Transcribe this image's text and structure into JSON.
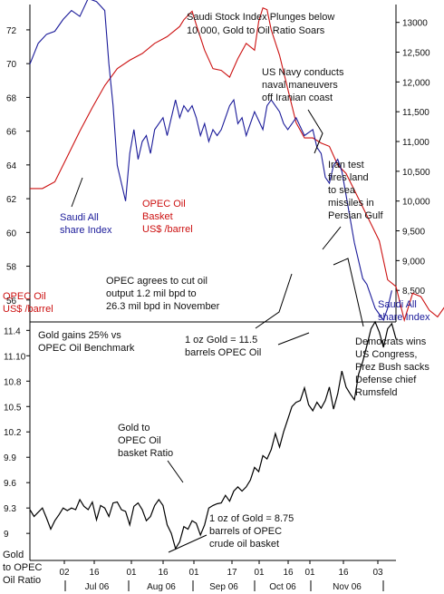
{
  "chart_data": [
    {
      "type": "line",
      "title": "Saudi Stock Index Plunges below 10,000, Gold to Oil Ratio Soars",
      "y_left": {
        "ticks": [
          56,
          58,
          60,
          62,
          64,
          66,
          68,
          70,
          72
        ],
        "lim": [
          54.7,
          73.5
        ]
      },
      "y_right": {
        "ticks": [
          "8,500",
          "9,000",
          "9,500",
          "10,000",
          "10,500",
          "11,000",
          "11,500",
          "12,000",
          "12,500",
          "13000"
        ],
        "values": [
          8500,
          9000,
          9500,
          10000,
          10500,
          11000,
          11500,
          12000,
          12500,
          13000
        ],
        "lim": [
          7970,
          13300
        ]
      },
      "series": [
        {
          "name": "OPEC Oil Basket US$ /barrel",
          "axis": "left",
          "color": "#cc1111",
          "points": [
            [
              0,
              62.6
            ],
            [
              3,
              62.6
            ],
            [
              6,
              63
            ],
            [
              9,
              64.5
            ],
            [
              12,
              66
            ],
            [
              15,
              67.4
            ],
            [
              18,
              68.7
            ],
            [
              21,
              69.7
            ],
            [
              24,
              70.2
            ],
            [
              27,
              70.6
            ],
            [
              30,
              71.2
            ],
            [
              33,
              71.6
            ],
            [
              36,
              72.2
            ],
            [
              37,
              72.6
            ],
            [
              39,
              73.1
            ],
            [
              40,
              72.3
            ],
            [
              42,
              70.8
            ],
            [
              44,
              69.7
            ],
            [
              46,
              69.6
            ],
            [
              48,
              69.2
            ],
            [
              50,
              70.3
            ],
            [
              52,
              71.2
            ],
            [
              54,
              70.8
            ],
            [
              55,
              72.5
            ],
            [
              56,
              73.3
            ],
            [
              57,
              73.2
            ],
            [
              58,
              72
            ],
            [
              60,
              70.5
            ],
            [
              62,
              68.5
            ],
            [
              64,
              66.5
            ],
            [
              66,
              65.6
            ],
            [
              68,
              65.6
            ],
            [
              70,
              65.3
            ],
            [
              72,
              65.1
            ],
            [
              74,
              64
            ],
            [
              76,
              63.5
            ],
            [
              78,
              62.5
            ],
            [
              80,
              61.5
            ],
            [
              82,
              60.5
            ],
            [
              84,
              59.5
            ],
            [
              86,
              57.2
            ],
            [
              88,
              56.8
            ],
            [
              90,
              54.8
            ],
            [
              92,
              56.4
            ],
            [
              94,
              56.2
            ],
            [
              96,
              55.4
            ],
            [
              98,
              55
            ],
            [
              100,
              55.7
            ],
            [
              102,
              56.3
            ],
            [
              104,
              55.6
            ],
            [
              106,
              55.2
            ],
            [
              108,
              55.9
            ],
            [
              110,
              55.7
            ],
            [
              112,
              55.1
            ],
            [
              114,
              55.3
            ],
            [
              116,
              55.8
            ],
            [
              117,
              56
            ]
          ]
        },
        {
          "name": "Saudi All share Index",
          "axis": "right",
          "color": "#1a1a99",
          "points": [
            [
              0,
              12300
            ],
            [
              2,
              12650
            ],
            [
              4,
              12800
            ],
            [
              6,
              12850
            ],
            [
              8,
              13050
            ],
            [
              10,
              13200
            ],
            [
              12,
              13100
            ],
            [
              14,
              13400
            ],
            [
              16,
              13350
            ],
            [
              18,
              13200
            ],
            [
              19,
              12300
            ],
            [
              20,
              11600
            ],
            [
              21,
              10600
            ],
            [
              22,
              10300
            ],
            [
              23,
              10000
            ],
            [
              24,
              10800
            ],
            [
              25,
              11200
            ],
            [
              26,
              10700
            ],
            [
              27,
              11000
            ],
            [
              28,
              11100
            ],
            [
              29,
              10800
            ],
            [
              30,
              11200
            ],
            [
              31,
              11300
            ],
            [
              32,
              11400
            ],
            [
              33,
              11100
            ],
            [
              34,
              11400
            ],
            [
              35,
              11700
            ],
            [
              36,
              11400
            ],
            [
              37,
              11600
            ],
            [
              38,
              11500
            ],
            [
              39,
              11600
            ],
            [
              40,
              11400
            ],
            [
              41,
              11100
            ],
            [
              42,
              11300
            ],
            [
              43,
              11000
            ],
            [
              44,
              11200
            ],
            [
              45,
              11100
            ],
            [
              46,
              11200
            ],
            [
              47,
              11400
            ],
            [
              48,
              11600
            ],
            [
              49,
              11700
            ],
            [
              50,
              11300
            ],
            [
              51,
              11400
            ],
            [
              52,
              11100
            ],
            [
              53,
              11300
            ],
            [
              54,
              11500
            ],
            [
              55,
              11350
            ],
            [
              56,
              11200
            ],
            [
              57,
              11600
            ],
            [
              58,
              11700
            ],
            [
              60,
              11500
            ],
            [
              61,
              11300
            ],
            [
              62,
              11200
            ],
            [
              64,
              11400
            ],
            [
              66,
              11100
            ],
            [
              68,
              11200
            ],
            [
              69,
              10900
            ],
            [
              70,
              10800
            ],
            [
              71,
              10400
            ],
            [
              72,
              10300
            ],
            [
              73,
              10600
            ],
            [
              74,
              10700
            ],
            [
              75,
              10500
            ],
            [
              76,
              10100
            ],
            [
              77,
              9700
            ],
            [
              78,
              9300
            ],
            [
              79,
              9000
            ],
            [
              80,
              8700
            ],
            [
              81,
              8600
            ],
            [
              82,
              8400
            ],
            [
              83,
              8200
            ],
            [
              84,
              8100
            ],
            [
              85,
              8000
            ],
            [
              86,
              8200
            ],
            [
              87,
              8500
            ]
          ]
        }
      ]
    },
    {
      "type": "line",
      "title": "Gold gains 25% vs OPEC Oil Benchmark",
      "ylabel": "Gold to OPEC Oil Ratio",
      "ylim": [
        8.68,
        11.5
      ],
      "y_ticks": [
        9,
        9.3,
        9.6,
        9.9,
        10.2,
        10.5,
        10.8,
        11.1,
        11.4
      ],
      "x_ticks": [
        "02",
        "16",
        "01",
        "16",
        "01",
        "17",
        "01",
        "16",
        "01",
        "16",
        "03"
      ],
      "x_groups": [
        "Jul 06",
        "Aug 06",
        "Sep 06",
        "Oct 06",
        "Nov 06"
      ],
      "series": [
        {
          "name": "Gold to OPEC Oil basket Ratio",
          "color": "#000000",
          "points": [
            [
              0,
              9.28
            ],
            [
              1,
              9.2
            ],
            [
              2,
              9.25
            ],
            [
              3,
              9.3
            ],
            [
              4,
              9.18
            ],
            [
              5,
              9.05
            ],
            [
              6,
              9.15
            ],
            [
              7,
              9.22
            ],
            [
              8,
              9.3
            ],
            [
              9,
              9.27
            ],
            [
              10,
              9.3
            ],
            [
              11,
              9.28
            ],
            [
              12,
              9.4
            ],
            [
              13,
              9.32
            ],
            [
              14,
              9.28
            ],
            [
              15,
              9.37
            ],
            [
              16,
              9.16
            ],
            [
              17,
              9.33
            ],
            [
              18,
              9.3
            ],
            [
              19,
              9.2
            ],
            [
              20,
              9.36
            ],
            [
              21,
              9.37
            ],
            [
              22,
              9.28
            ],
            [
              23,
              9.26
            ],
            [
              24,
              9.1
            ],
            [
              25,
              9.32
            ],
            [
              26,
              9.36
            ],
            [
              27,
              9.28
            ],
            [
              28,
              9.15
            ],
            [
              29,
              9.2
            ],
            [
              30,
              9.33
            ],
            [
              31,
              9.4
            ],
            [
              32,
              9.33
            ],
            [
              33,
              9.1
            ],
            [
              34,
              9.0
            ],
            [
              35,
              8.82
            ],
            [
              36,
              8.9
            ],
            [
              37,
              9.08
            ],
            [
              38,
              9.05
            ],
            [
              39,
              9.15
            ],
            [
              40,
              9.12
            ],
            [
              41,
              8.98
            ],
            [
              42,
              9.1
            ],
            [
              43,
              9.3
            ],
            [
              44,
              9.33
            ],
            [
              45,
              9.35
            ],
            [
              46,
              9.36
            ],
            [
              47,
              9.45
            ],
            [
              48,
              9.38
            ],
            [
              49,
              9.5
            ],
            [
              50,
              9.55
            ],
            [
              51,
              9.5
            ],
            [
              52,
              9.55
            ],
            [
              53,
              9.63
            ],
            [
              54,
              9.78
            ],
            [
              55,
              9.73
            ],
            [
              56,
              9.92
            ],
            [
              57,
              9.88
            ],
            [
              58,
              9.99
            ],
            [
              59,
              10.18
            ],
            [
              60,
              10.02
            ],
            [
              61,
              10.2
            ],
            [
              62,
              10.35
            ],
            [
              63,
              10.5
            ],
            [
              64,
              10.55
            ],
            [
              65,
              10.57
            ],
            [
              66,
              10.72
            ],
            [
              67,
              10.52
            ],
            [
              68,
              10.45
            ],
            [
              69,
              10.55
            ],
            [
              70,
              10.48
            ],
            [
              71,
              10.57
            ],
            [
              72,
              10.73
            ],
            [
              73,
              10.47
            ],
            [
              74,
              10.65
            ],
            [
              75,
              10.92
            ],
            [
              76,
              10.73
            ],
            [
              77,
              10.65
            ],
            [
              78,
              10.58
            ],
            [
              79,
              10.88
            ],
            [
              80,
              11.03
            ],
            [
              81,
              11.22
            ],
            [
              82,
              11.42
            ],
            [
              83,
              11.5
            ],
            [
              84,
              11.38
            ],
            [
              85,
              11.2
            ],
            [
              86,
              11.42
            ],
            [
              87,
              11.48
            ],
            [
              88,
              11.3
            ]
          ]
        }
      ]
    }
  ],
  "labels": {
    "title_line1": "Saudi Stock Index Plunges below",
    "title_line2": "10,000, Gold to Oil Ratio Soars",
    "saudi_left_1": "Saudi All",
    "saudi_left_2": "share Index",
    "opec_mid_1": "OPEC Oil",
    "opec_mid_2": "Basket",
    "opec_mid_3": "US$ /barrel",
    "opec_left_1": "OPEC Oil",
    "opec_left_2": "US$ /barrel",
    "saudi_right_1": "Saudi All",
    "saudi_right_2": "share Index",
    "navy_1": "US Navy conducts",
    "navy_2": "naval maneuvers",
    "navy_3": "off Iranian coast",
    "iran_1": "Iran test",
    "iran_2": "fires land",
    "iran_3": "to sea",
    "iran_4": "missiles in",
    "iran_5": "Persian Gulf",
    "opec_cut_1": "OPEC agrees to cut oil",
    "opec_cut_2": "output 1.2 mil bpd to",
    "opec_cut_3": "26.3 mil bpd in November",
    "gold_title_1": "Gold gains 25% vs",
    "gold_title_2": "OPEC Oil Benchmark",
    "oz115_1": "1 oz Gold = 11.5",
    "oz115_2": "barrels OPEC Oil",
    "dem_1": "Democrats wins",
    "dem_2": "US Congress,",
    "dem_3": "Prez Bush sacks",
    "dem_4": "Defense chief",
    "dem_5": "Rumsfeld",
    "ratio_1": "Gold to",
    "ratio_2": "OPEC Oil",
    "ratio_3": "basket Ratio",
    "oz875_1": "1 oz of Gold = 8.75",
    "oz875_2": "barrels of OPEC",
    "oz875_3": "crude oil basket",
    "ylab_1": "Gold",
    "ylab_2": "to OPEC",
    "ylab_3": "Oil Ratio"
  }
}
